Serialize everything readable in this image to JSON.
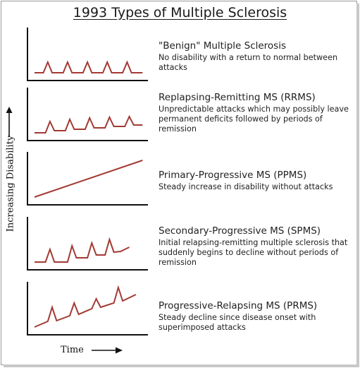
{
  "title": "1993 Types of Multiple Sclerosis",
  "axes": {
    "y_label": "Increasing Disability",
    "x_label": "Time"
  },
  "colors": {
    "curve": "#a33a33",
    "axis": "#111111"
  },
  "types": [
    {
      "title": "\"Benign\" Multiple Sclerosis",
      "description": "No disability with a return to normal between attacks",
      "pattern": "relapses-return-to-baseline",
      "points": [
        [
          0,
          0
        ],
        [
          8,
          0
        ],
        [
          12,
          15
        ],
        [
          16,
          0
        ],
        [
          26,
          0
        ],
        [
          30,
          15
        ],
        [
          34,
          0
        ],
        [
          44,
          0
        ],
        [
          48,
          15
        ],
        [
          52,
          0
        ],
        [
          62,
          0
        ],
        [
          66,
          15
        ],
        [
          70,
          0
        ],
        [
          80,
          0
        ],
        [
          84,
          15
        ],
        [
          88,
          0
        ],
        [
          98,
          0
        ]
      ]
    },
    {
      "title": "Replapsing-Remitting MS (RRMS)",
      "description": "Unpredictable attacks which may possibly leave permanent deficits followed by periods of remission",
      "pattern": "relapses-with-residual-steps",
      "points": [
        [
          0,
          0
        ],
        [
          10,
          0
        ],
        [
          14,
          16
        ],
        [
          18,
          3
        ],
        [
          28,
          3
        ],
        [
          32,
          19
        ],
        [
          36,
          5
        ],
        [
          46,
          5
        ],
        [
          50,
          21
        ],
        [
          54,
          7
        ],
        [
          64,
          7
        ],
        [
          68,
          22
        ],
        [
          72,
          9
        ],
        [
          82,
          9
        ],
        [
          86,
          23
        ],
        [
          90,
          11
        ],
        [
          98,
          11
        ]
      ]
    },
    {
      "title": "Primary-Progressive MS (PPMS)",
      "description": "Steady increase in disability without attacks",
      "pattern": "steady-increase",
      "points": [
        [
          0,
          0
        ],
        [
          98,
          52
        ]
      ]
    },
    {
      "title": "Secondary-Progressive MS (SPMS)",
      "description": "Initial relapsing-remitting multiple sclerosis that suddenly begins to decline without periods of remission",
      "pattern": "relapsing-then-progressive",
      "points": [
        [
          0,
          0
        ],
        [
          10,
          0
        ],
        [
          14,
          18
        ],
        [
          18,
          0
        ],
        [
          30,
          0
        ],
        [
          34,
          23
        ],
        [
          38,
          6
        ],
        [
          48,
          6
        ],
        [
          52,
          27
        ],
        [
          56,
          10
        ],
        [
          64,
          10
        ],
        [
          68,
          32
        ],
        [
          72,
          14
        ],
        [
          78,
          15
        ],
        [
          86,
          21
        ]
      ]
    },
    {
      "title": "Progressive-Relapsing MS (PRMS)",
      "description": "Steady decline since disease onset with superimposed attacks",
      "pattern": "progressive-with-attacks",
      "points": [
        [
          0,
          0
        ],
        [
          12,
          8
        ],
        [
          16,
          28
        ],
        [
          20,
          9
        ],
        [
          32,
          16
        ],
        [
          36,
          34
        ],
        [
          40,
          18
        ],
        [
          52,
          26
        ],
        [
          56,
          40
        ],
        [
          60,
          28
        ],
        [
          72,
          34
        ],
        [
          76,
          56
        ],
        [
          80,
          37
        ],
        [
          92,
          46
        ]
      ]
    }
  ]
}
